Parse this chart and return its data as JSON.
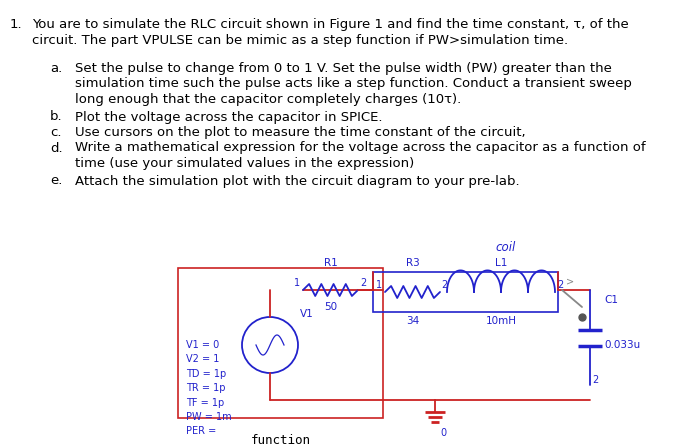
{
  "bg_color": "#ffffff",
  "text_color": "#000000",
  "wire_color": "#cc2222",
  "comp_color": "#2222cc",
  "font_size_main": 9.5,
  "font_size_mono": 9,
  "header1": "You are to simulate the RLC circuit shown in Figure 1 and find the time constant, τ, of the",
  "header2": "circuit. The part VPULSE can be mimic as a step function if PW>simulation time.",
  "sub_a1": "Set the pulse to change from 0 to 1 V. Set the pulse width (PW) greater than the",
  "sub_a2": "simulation time such the pulse acts like a step function. Conduct a transient sweep",
  "sub_a3": "long enough that the capacitor completely charges (10τ).",
  "sub_b": "Plot the voltage across the capacitor in SPICE.",
  "sub_c": "Use cursors on the plot to measure the time constant of the circuit,",
  "sub_d1": "Write a mathematical expression for the voltage across the capacitor as a function of",
  "sub_d2": "time (use your simulated values in the expression)",
  "sub_e": "Attach the simulation plot with the circuit diagram to your pre-lab.",
  "fg_label": "function\ngenerator",
  "R1": "R1",
  "R1v": "50",
  "R3": "R3",
  "R3v": "34",
  "L1": "L1",
  "L1v": "10mH",
  "C1": "C1",
  "C1v": "0.033u",
  "V1": "V1",
  "coil": "coil",
  "node1": "1",
  "node2": "2",
  "gnd_label": "0",
  "src_params": "V1 = 0\nV2 = 1\nTD = 1p\nTR = 1p\nTF = 1p\nPW = 1m\nPER ="
}
